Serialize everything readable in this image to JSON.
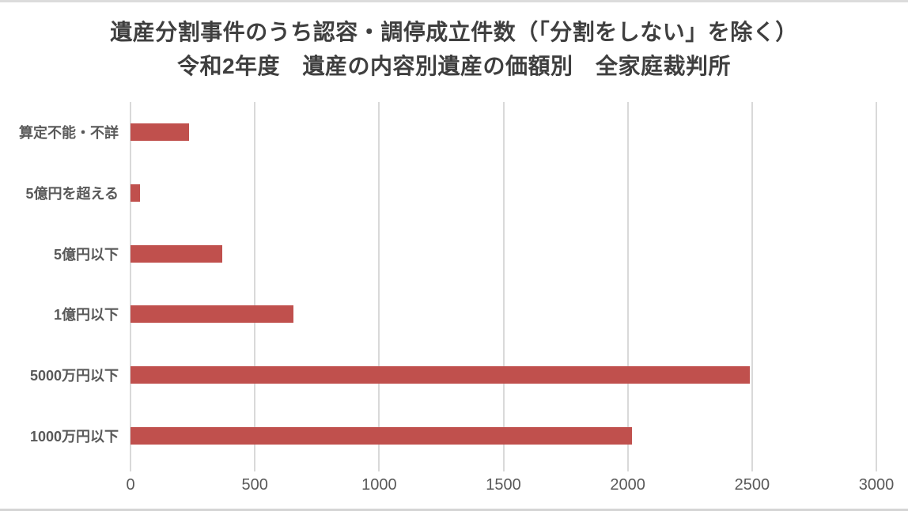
{
  "page": {
    "background": "#ffffff",
    "frame_border_color": "#d9d9d9"
  },
  "chart_data": {
    "type": "bar",
    "orientation": "horizontal",
    "title_lines": [
      "遺産分割事件のうち認容・調停成立件数（「分割をしない」を除く）",
      "令和2年度　遺産の内容別遺産の価額別　全家庭裁判所"
    ],
    "categories": [
      "算定不能・不詳",
      "5億円を超える",
      "5億円以下",
      "1億円以下",
      "5000万円以下",
      "1000万円以下"
    ],
    "values": [
      236,
      39,
      369,
      654,
      2492,
      2017
    ],
    "xlabel": "",
    "ylabel": "",
    "xlim": [
      0,
      3000
    ],
    "x_ticks": [
      0,
      500,
      1000,
      1500,
      2000,
      2500,
      3000
    ],
    "grid": true,
    "grid_direction": "vertical",
    "legend": "none",
    "colors": {
      "bar": "#c0504d",
      "gridline": "#d9d9d9",
      "axis_label": "#595959",
      "title": "#3f3f3f"
    }
  }
}
